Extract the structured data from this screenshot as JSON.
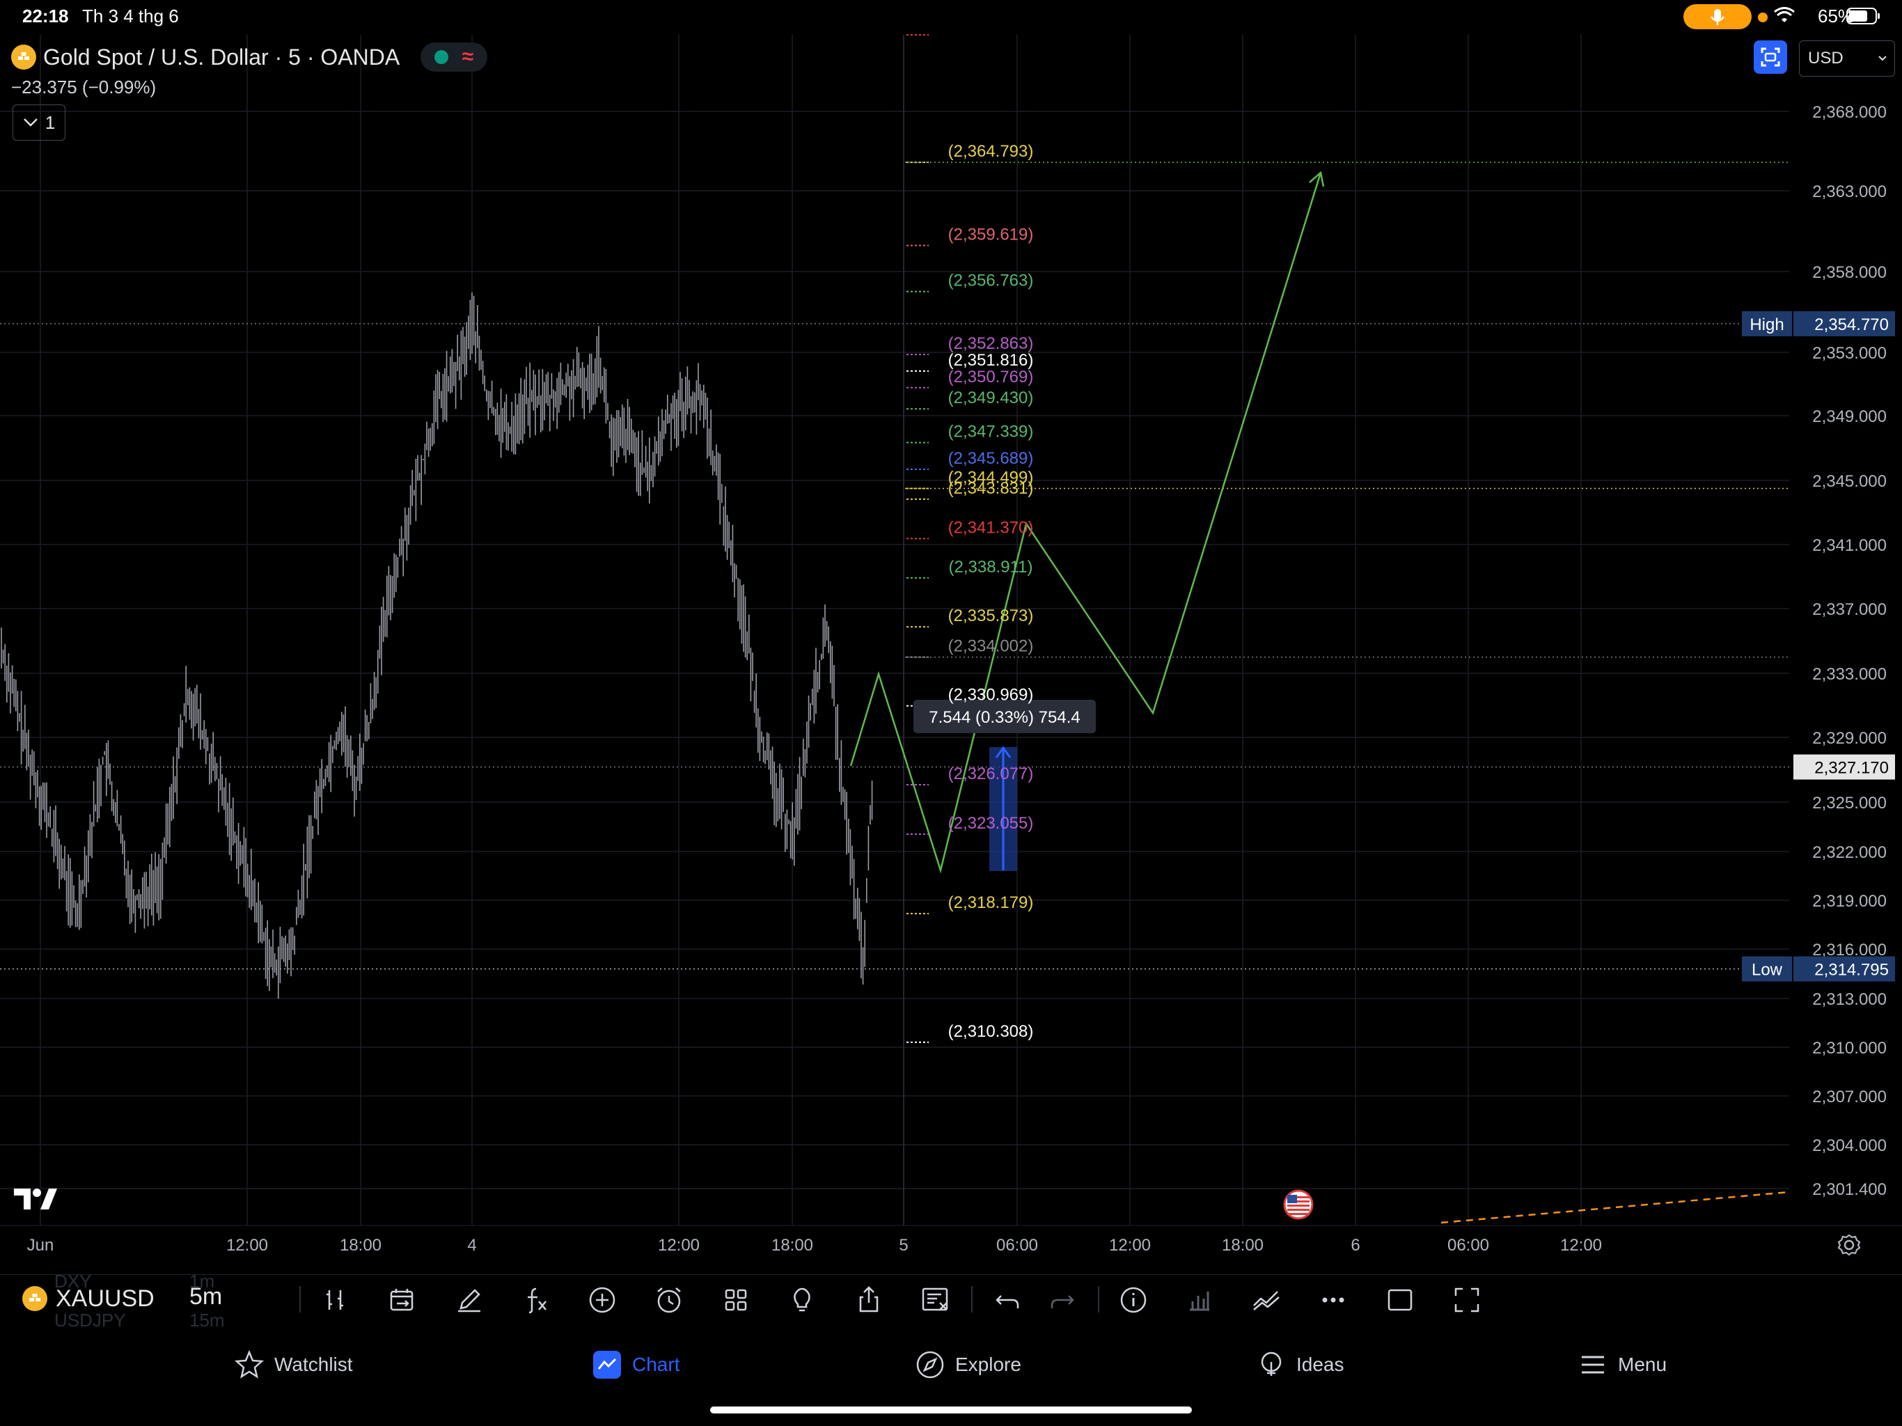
{
  "status_bar": {
    "time": "22:18",
    "date": "Th 3 4 thg 6",
    "battery": "65%"
  },
  "header": {
    "symbol_title": "Gold Spot / U.S. Dollar · 5 · OANDA",
    "change": "−23.375 (−0.99%)",
    "collapse_count": "1",
    "currency": "USD"
  },
  "price_axis": {
    "ticks": [
      "2,368.000",
      "2,363.000",
      "2,358.000",
      "2,353.000",
      "2,349.000",
      "2,345.000",
      "2,341.000",
      "2,337.000",
      "2,333.000",
      "2,329.000",
      "2,325.000",
      "2,322.000",
      "2,319.000",
      "2,316.000",
      "2,313.000",
      "2,310.000",
      "2,307.000",
      "2,304.000",
      "2,301.400"
    ],
    "high_label": "High",
    "high_value": "2,354.770",
    "low_label": "Low",
    "low_value": "2,314.795",
    "last_price": "2,327.170"
  },
  "time_axis": {
    "labels": [
      "Jun",
      "12:00",
      "18:00",
      "4",
      "12:00",
      "18:00",
      "5",
      "06:00",
      "12:00",
      "18:00",
      "6",
      "06:00",
      "12:00"
    ]
  },
  "fib_levels": [
    {
      "text": "(2,364.793)",
      "color": "#e5d14a"
    },
    {
      "text": "(2,359.619)",
      "color": "#e0666f"
    },
    {
      "text": "(2,356.763)",
      "color": "#58b86c"
    },
    {
      "text": "(2,352.863)",
      "color": "#b65ec6"
    },
    {
      "text": "(2,351.816)",
      "color": "#ffffff"
    },
    {
      "text": "(2,350.769)",
      "color": "#b65ec6"
    },
    {
      "text": "(2,349.430)",
      "color": "#58b86c"
    },
    {
      "text": "(2,347.339)",
      "color": "#58b86c"
    },
    {
      "text": "(2,345.689)",
      "color": "#4b6ee6"
    },
    {
      "text": "(2,344.499)",
      "color": "#e5d14a"
    },
    {
      "text": "(2,343.831)",
      "color": "#e5d14a"
    },
    {
      "text": "(2,341.370)",
      "color": "#e23b3b"
    },
    {
      "text": "(2,338.911)",
      "color": "#58b86c"
    },
    {
      "text": "(2,335.873)",
      "color": "#e5d14a"
    },
    {
      "text": "(2,334.002)",
      "color": "#8a8a8a"
    },
    {
      "text": "(2,330.969)",
      "color": "#ffffff"
    },
    {
      "text": "(2,326.077)",
      "color": "#b65ec6"
    },
    {
      "text": "(2,323.055)",
      "color": "#b65ec6"
    },
    {
      "text": "(2,318.179)",
      "color": "#e5d14a"
    },
    {
      "text": "(2,310.308)",
      "color": "#ffffff"
    }
  ],
  "measure_tooltip": "7.544 (0.33%) 754.4",
  "toolbar": {
    "symbol": "XAUUSD",
    "timeframe": "5m",
    "ghost_symbols": [
      "DXY",
      "USDJPY"
    ],
    "ghost_timeframes": [
      "1m",
      "15m"
    ]
  },
  "bottom_nav": [
    {
      "label": "Watchlist",
      "icon": "star-icon"
    },
    {
      "label": "Chart",
      "icon": "chart-icon"
    },
    {
      "label": "Explore",
      "icon": "compass-icon"
    },
    {
      "label": "Ideas",
      "icon": "lightbulb-icon"
    },
    {
      "label": "Menu",
      "icon": "hamburger-icon"
    }
  ],
  "colors": {
    "accent": "#2962ff",
    "projection": "#5dbb4b",
    "high_low_badge": "#1e3a6b",
    "orange_dashed": "#f7931a"
  }
}
